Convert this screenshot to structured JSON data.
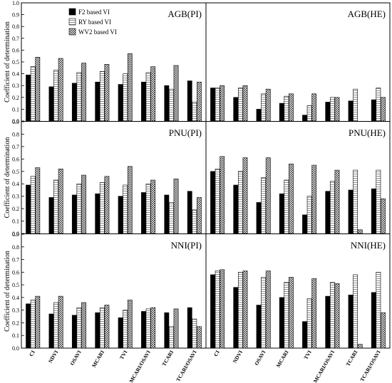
{
  "chart_data": {
    "type": "bar",
    "categories": [
      "CI",
      "NDVI",
      "OSAVI",
      "MCARI",
      "TVI",
      "MCARI/OSAVI",
      "TCARI",
      "TCARI/OSAVI"
    ],
    "legend": [
      "F2 based VI",
      "RY based VI",
      "WV2 based VI"
    ],
    "legend_position": "top-left",
    "ylabel": "Coefficient of determination",
    "grid": false,
    "colors": {
      "F2": "#000000",
      "RY": "#ffffff",
      "WV2": "#9a9a9a"
    },
    "panels": [
      {
        "title": "AGB(PI)",
        "ylim": [
          0,
          1.0
        ],
        "yticks": [
          "0.0",
          "0.1",
          "0.2",
          "0.3",
          "0.4",
          "0.5",
          "0.6",
          "0.7",
          "0.8",
          "0.9",
          "1.0"
        ],
        "series": [
          {
            "name": "F2 based VI",
            "values": [
              0.39,
              0.29,
              0.32,
              0.33,
              0.31,
              0.33,
              0.3,
              0.34
            ]
          },
          {
            "name": "RY based VI",
            "values": [
              0.46,
              0.43,
              0.41,
              0.42,
              0.4,
              0.41,
              0.27,
              0.16
            ]
          },
          {
            "name": "WV2 based VI",
            "values": [
              0.54,
              0.53,
              0.49,
              0.48,
              0.57,
              0.46,
              0.47,
              0.33
            ]
          }
        ]
      },
      {
        "title": "AGB(HE)",
        "ylim": [
          0,
          1.0
        ],
        "series": [
          {
            "name": "F2 based VI",
            "values": [
              0.28,
              0.2,
              0.1,
              0.15,
              0.05,
              0.16,
              0.17,
              0.18
            ]
          },
          {
            "name": "RY based VI",
            "values": [
              0.28,
              0.28,
              0.23,
              0.21,
              0.13,
              0.2,
              0.27,
              0.28
            ]
          },
          {
            "name": "WV2 based VI",
            "values": [
              0.3,
              0.3,
              0.27,
              0.23,
              0.23,
              0.2,
              0.0,
              0.2
            ]
          }
        ]
      },
      {
        "title": "PNU(PI)",
        "ylim": [
          0,
          0.9
        ],
        "yticks": [
          "0.0",
          "0.1",
          "0.2",
          "0.3",
          "0.4",
          "0.5",
          "0.6",
          "0.7",
          "0.8",
          "0.9"
        ],
        "series": [
          {
            "name": "F2 based VI",
            "values": [
              0.39,
              0.29,
              0.31,
              0.32,
              0.3,
              0.33,
              0.31,
              0.34
            ]
          },
          {
            "name": "RY based VI",
            "values": [
              0.46,
              0.43,
              0.4,
              0.41,
              0.39,
              0.4,
              0.25,
              0.19
            ]
          },
          {
            "name": "WV2 based VI",
            "values": [
              0.53,
              0.52,
              0.47,
              0.46,
              0.54,
              0.43,
              0.44,
              0.29
            ]
          }
        ]
      },
      {
        "title": "PNU(HE)",
        "ylim": [
          0,
          0.9
        ],
        "series": [
          {
            "name": "F2 based VI",
            "values": [
              0.5,
              0.39,
              0.25,
              0.32,
              0.15,
              0.34,
              0.35,
              0.36
            ]
          },
          {
            "name": "RY based VI",
            "values": [
              0.52,
              0.5,
              0.45,
              0.43,
              0.3,
              0.42,
              0.51,
              0.51
            ]
          },
          {
            "name": "WV2 based VI",
            "values": [
              0.62,
              0.61,
              0.61,
              0.56,
              0.55,
              0.51,
              0.03,
              0.28
            ]
          }
        ]
      },
      {
        "title": "NNI(PI)",
        "ylim": [
          0,
          0.9
        ],
        "yticks": [
          "0.0",
          "0.1",
          "0.2",
          "0.3",
          "0.4",
          "0.5",
          "0.6",
          "0.7",
          "0.8",
          "0.9"
        ],
        "series": [
          {
            "name": "F2 based VI",
            "values": [
              0.35,
              0.27,
              0.26,
              0.28,
              0.24,
              0.29,
              0.28,
              0.32
            ]
          },
          {
            "name": "RY based VI",
            "values": [
              0.38,
              0.36,
              0.32,
              0.32,
              0.3,
              0.31,
              0.17,
              0.23
            ]
          },
          {
            "name": "WV2 based VI",
            "values": [
              0.41,
              0.41,
              0.36,
              0.34,
              0.38,
              0.32,
              0.31,
              0.17
            ]
          }
        ]
      },
      {
        "title": "NNI(HE)",
        "ylim": [
          0,
          0.9
        ],
        "series": [
          {
            "name": "F2 based VI",
            "values": [
              0.58,
              0.48,
              0.34,
              0.4,
              0.21,
              0.41,
              0.42,
              0.44
            ]
          },
          {
            "name": "RY based VI",
            "values": [
              0.61,
              0.6,
              0.56,
              0.52,
              0.39,
              0.52,
              0.58,
              0.6
            ]
          },
          {
            "name": "WV2 based VI",
            "values": [
              0.62,
              0.61,
              0.61,
              0.56,
              0.55,
              0.51,
              0.03,
              0.28
            ]
          }
        ]
      }
    ]
  }
}
